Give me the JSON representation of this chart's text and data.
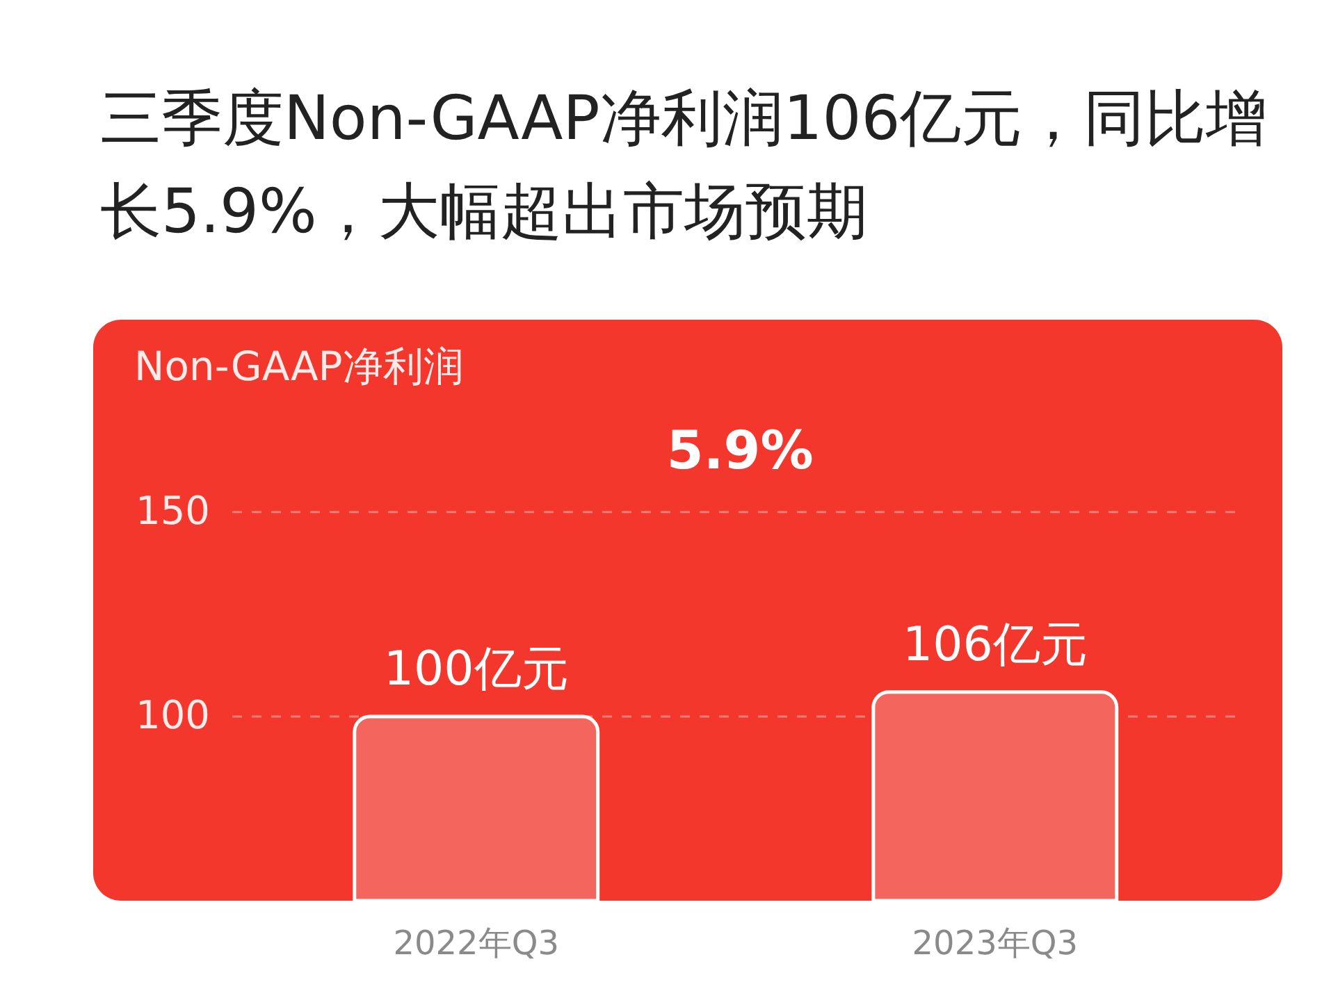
{
  "chart_data": {
    "type": "bar",
    "title": "三季度Non-GAAP净利润106亿元，同比增长5.9%，大幅超出市场预期",
    "ylabel": "Non-GAAP净利润",
    "categories": [
      "2022年Q3",
      "2023年Q3"
    ],
    "values": [
      100,
      106
    ],
    "value_labels": [
      "100亿元",
      "106亿元"
    ],
    "color": "#f4665d",
    "ylim": [
      55,
      197
    ],
    "yticks": [
      100,
      150
    ],
    "grid": "y",
    "annotations": [
      "5.9%"
    ]
  }
}
